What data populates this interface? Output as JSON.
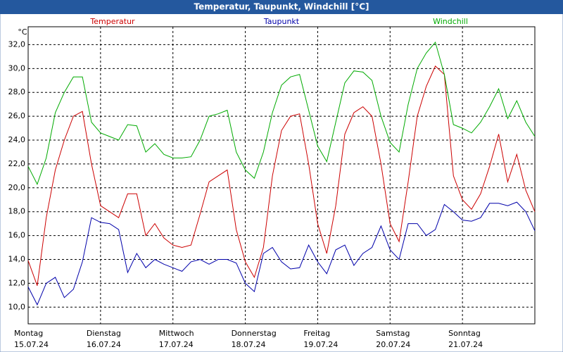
{
  "chart_data": {
    "type": "line",
    "title": "Temperatur, Taupunkt, Windchill [°C]",
    "y_unit": "°C",
    "x": [
      0,
      3,
      6,
      9,
      12,
      15,
      18,
      21,
      24,
      27,
      30,
      33,
      36,
      39,
      42,
      45,
      48,
      51,
      54,
      57,
      60,
      63,
      66,
      69,
      72,
      75,
      78,
      81,
      84,
      87,
      90,
      93,
      96,
      99,
      102,
      105,
      108,
      111,
      114,
      117,
      120,
      123,
      126,
      129,
      132,
      135,
      138,
      141,
      144,
      147,
      150,
      153,
      156,
      159,
      162,
      165,
      168
    ],
    "series": [
      {
        "name": "Temperatur",
        "color": "#cc0000",
        "values": [
          13.9,
          11.8,
          17.5,
          21.5,
          24,
          26,
          26.4,
          22,
          18.5,
          18,
          17.5,
          19.5,
          19.5,
          16,
          17,
          15.8,
          15.2,
          15,
          15.2,
          17.8,
          20.5,
          21,
          21.5,
          16.5,
          13.8,
          12.5,
          15,
          21,
          24.8,
          26,
          26.2,
          22,
          17,
          14.5,
          18.5,
          24.5,
          26.3,
          26.8,
          26,
          22,
          17,
          15.5,
          20.5,
          26,
          28.5,
          30.2,
          29.5,
          21,
          19,
          18.2,
          19.5,
          21.8,
          24.5,
          20.5,
          22.8,
          19.8,
          18
        ]
      },
      {
        "name": "Taupunkt",
        "color": "#0000aa",
        "values": [
          11.7,
          10.2,
          12,
          12.5,
          10.8,
          11.5,
          13.8,
          17.5,
          17.1,
          17,
          16.5,
          12.9,
          14.5,
          13.3,
          14,
          13.6,
          13.3,
          13,
          13.8,
          14,
          13.6,
          14,
          14,
          13.7,
          12,
          11.3,
          14.5,
          15,
          13.8,
          13.2,
          13.3,
          15.2,
          13.8,
          12.8,
          14.8,
          15.2,
          13.5,
          14.5,
          15,
          16.8,
          14.8,
          14,
          17,
          17,
          16,
          16.5,
          18.6,
          18,
          17.3,
          17.2,
          17.5,
          18.7,
          18.7,
          18.5,
          18.8,
          18,
          16.4
        ]
      },
      {
        "name": "Windchill",
        "color": "#00aa00",
        "values": [
          21.8,
          20.3,
          22.5,
          26.3,
          28,
          29.3,
          29.3,
          25.5,
          24.6,
          24.3,
          24,
          25.3,
          25.2,
          23,
          23.7,
          22.8,
          22.5,
          22.5,
          22.6,
          24,
          26,
          26.2,
          26.5,
          23,
          21.5,
          20.8,
          23,
          26.3,
          28.6,
          29.3,
          29.5,
          26.5,
          23.5,
          22.2,
          25.5,
          28.8,
          29.8,
          29.7,
          29,
          26,
          23.8,
          23,
          27,
          30,
          31.3,
          32.2,
          29.5,
          25.3,
          25,
          24.6,
          25.5,
          26.8,
          28.3,
          25.8,
          27.3,
          25.5,
          24.3
        ]
      }
    ],
    "xlim": [
      0,
      168
    ],
    "xticks": [
      {
        "value": 0,
        "label": "Montag"
      },
      {
        "value": 24,
        "label": "Dienstag"
      },
      {
        "value": 48,
        "label": "Mittwoch"
      },
      {
        "value": 72,
        "label": "Donnerstag"
      },
      {
        "value": 96,
        "label": "Freitag"
      },
      {
        "value": 120,
        "label": "Samstag"
      },
      {
        "value": 144,
        "label": "Sonntag"
      }
    ],
    "xtick_sublabels": [
      "15.07.24",
      "16.07.24",
      "17.07.24",
      "18.07.24",
      "19.07.24",
      "20.07.24",
      "21.07.24"
    ],
    "ylim": [
      8.6,
      33.5
    ],
    "yticks": [
      {
        "value": 10,
        "label": "10,0"
      },
      {
        "value": 12,
        "label": "12,0"
      },
      {
        "value": 14,
        "label": "14,0"
      },
      {
        "value": 16,
        "label": "16,0"
      },
      {
        "value": 18,
        "label": "18,0"
      },
      {
        "value": 20,
        "label": "20,0"
      },
      {
        "value": 22,
        "label": "22,0"
      },
      {
        "value": 24,
        "label": "24,0"
      },
      {
        "value": 26,
        "label": "26,0"
      },
      {
        "value": 28,
        "label": "28,0"
      },
      {
        "value": 30,
        "label": "30,0"
      },
      {
        "value": 32,
        "label": "32,0"
      }
    ],
    "grid": true
  }
}
